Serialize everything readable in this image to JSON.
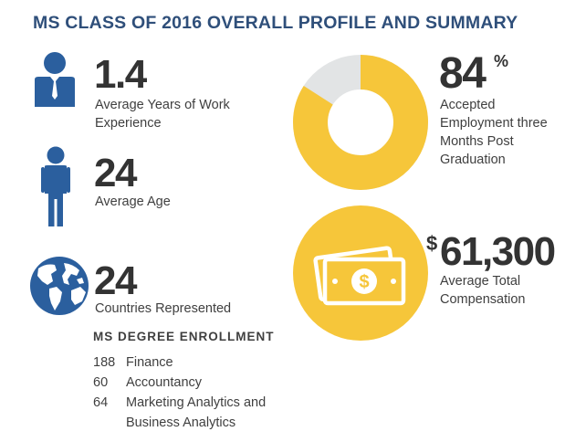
{
  "title": "MS CLASS OF 2016 OVERALL PROFILE AND SUMMARY",
  "stats": {
    "work_experience": {
      "value": "1.4",
      "label_line1": "Average Years of Work",
      "label_line2": "Experience",
      "icon": "businessman-icon"
    },
    "age": {
      "value": "24",
      "label": "Average Age",
      "icon": "person-icon"
    },
    "countries": {
      "value": "24",
      "label": "Countries Represented",
      "icon": "globe-icon"
    },
    "employment": {
      "value": "84",
      "unit": "%",
      "label_line1": "Accepted",
      "label_line2": "Employment three",
      "label_line3": "Months Post",
      "label_line4": "Graduation",
      "percent": 84
    },
    "compensation": {
      "currency": "$",
      "value": "61,300",
      "label_line1": "Average Total",
      "label_line2": "Compensation",
      "icon": "money-icon"
    }
  },
  "enrollment": {
    "title": "MS DEGREE ENROLLMENT",
    "rows": [
      {
        "count": "188",
        "program": "Finance"
      },
      {
        "count": "60",
        "program": "Accountancy"
      },
      {
        "count": "64",
        "program": "Marketing Analytics and",
        "program_line2": "Business Analytics"
      }
    ]
  },
  "colors": {
    "title_blue": "#2f4f7a",
    "icon_blue": "#2b5f9e",
    "gold": "#f6c63a",
    "donut_gray": "#e2e4e5"
  }
}
